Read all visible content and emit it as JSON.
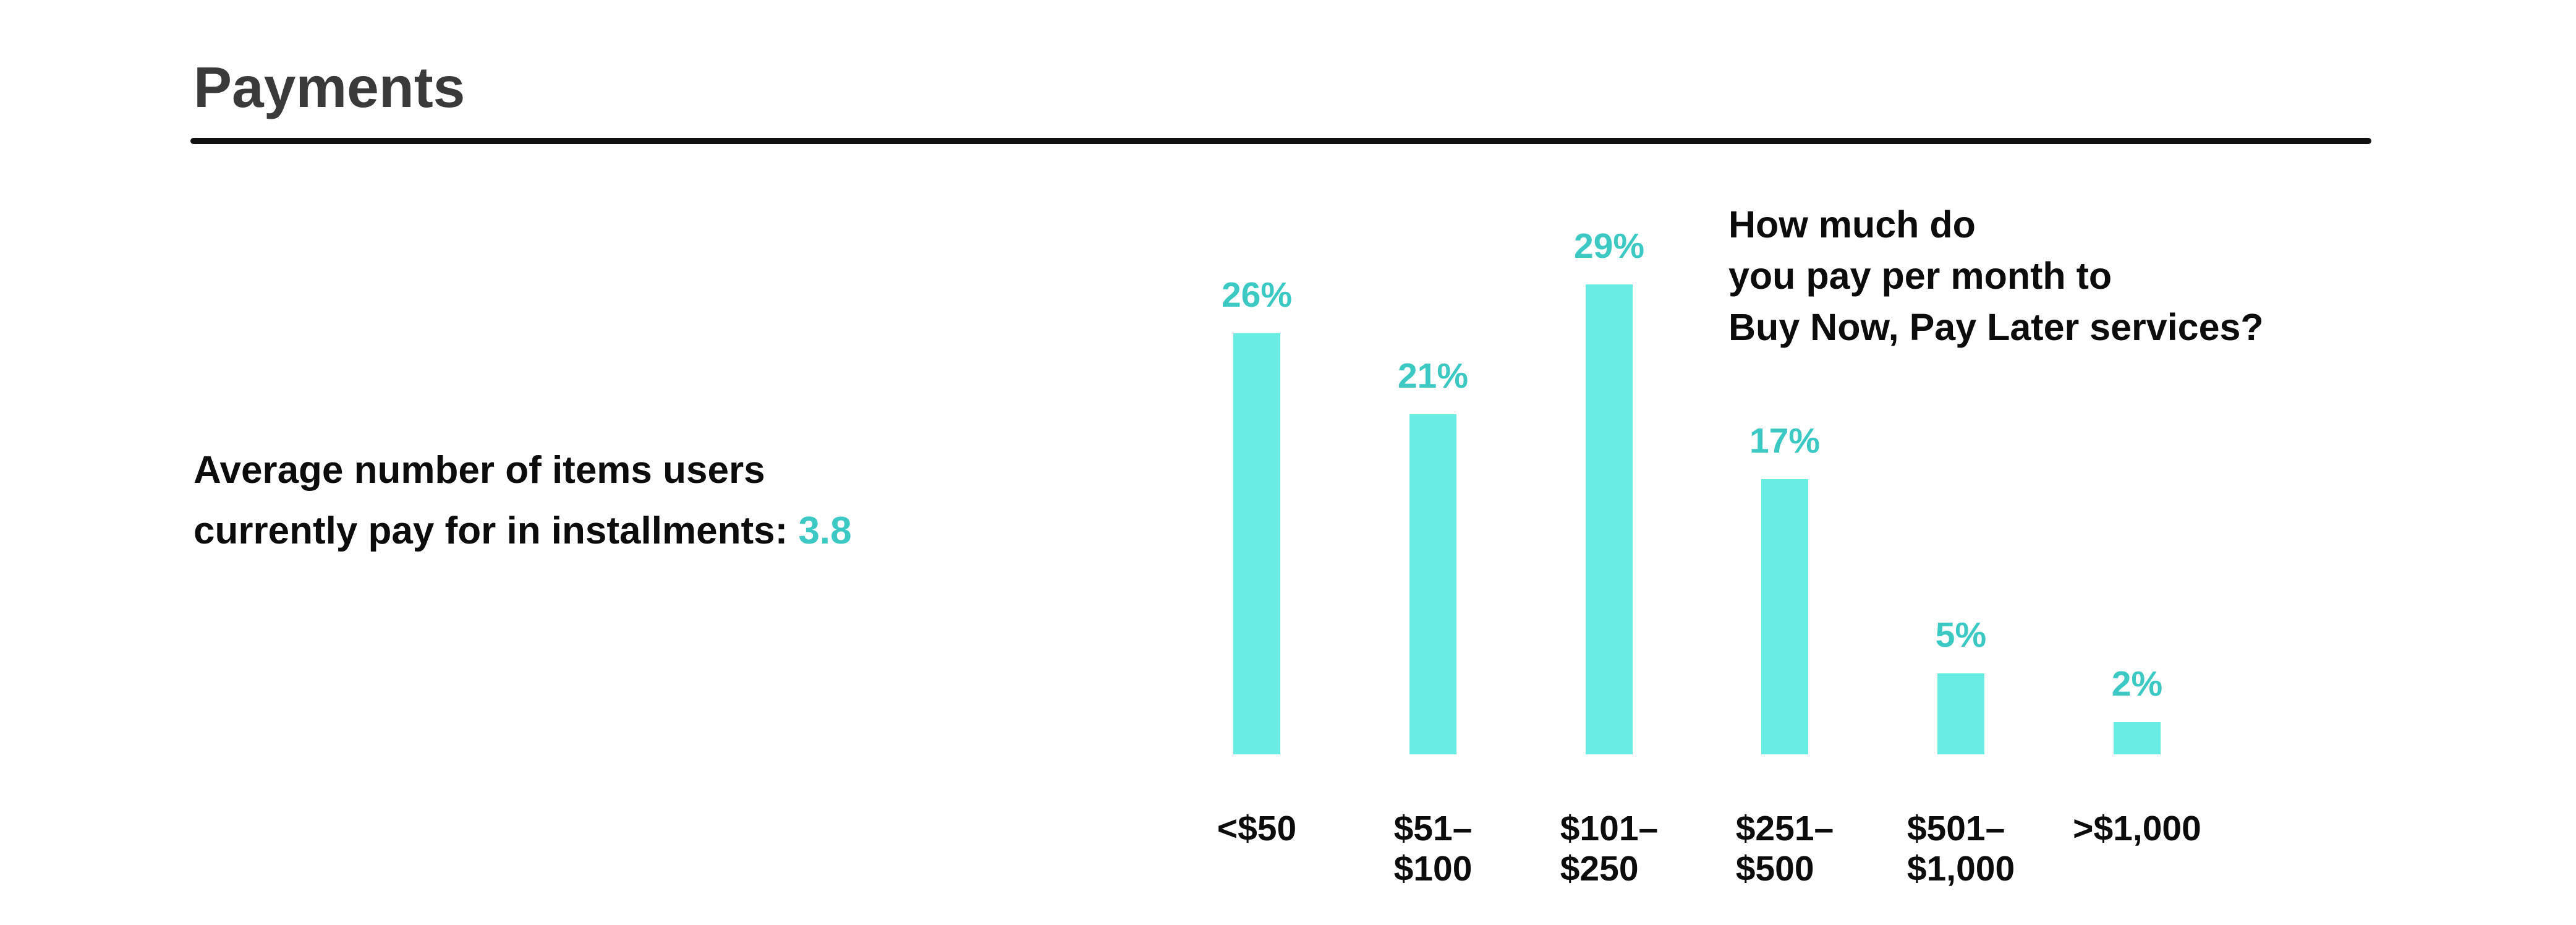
{
  "page": {
    "title": "Payments"
  },
  "colors": {
    "title_text": "#3a3a3a",
    "body_text": "#0c0c0c",
    "rule": "#0f0f0f",
    "accent_teal": "#3cc9c3",
    "bar_fill": "#68ebe2",
    "background": "#ffffff"
  },
  "stat": {
    "line1": "Average number of items users",
    "line2_prefix": "currently pay for in installments: ",
    "value": "3.8"
  },
  "chart_data": {
    "type": "bar",
    "title": "How much do\nyou pay per month to\nBuy Now, Pay Later services?",
    "categories": [
      "<$50",
      "$51–\n$100",
      "$101–\n$250",
      "$251–\n$500",
      "$501–\n$1,000",
      ">$1,000"
    ],
    "values": [
      26,
      21,
      29,
      17,
      5,
      2
    ],
    "value_labels": [
      "26%",
      "21%",
      "29%",
      "17%",
      "5%",
      "2%"
    ],
    "unit": "%",
    "xlabel": "",
    "ylabel": "",
    "ylim": [
      0,
      30
    ],
    "grid": false,
    "legend": null,
    "bar_color": "#68ebe2",
    "value_label_color": "#3cc9c3"
  }
}
